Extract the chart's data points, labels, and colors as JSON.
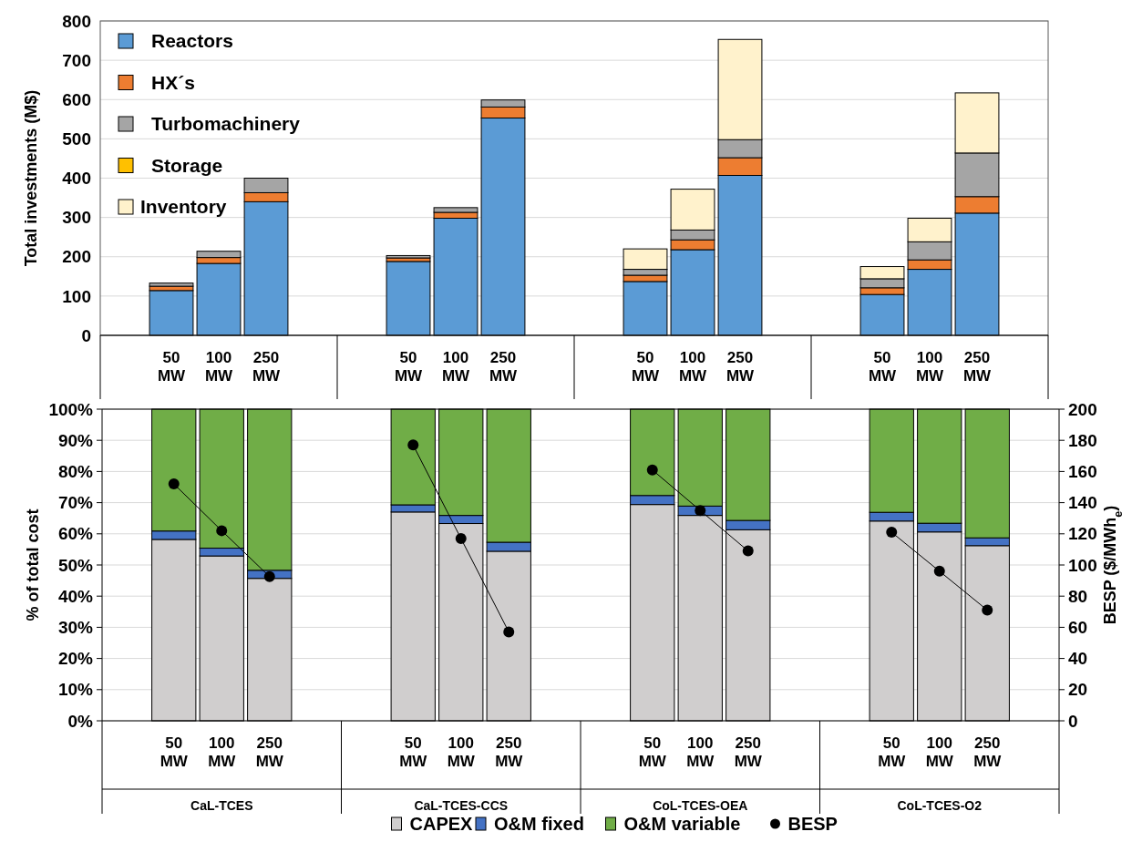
{
  "chart_data": [
    {
      "type": "bar",
      "stacked": true,
      "ylabel": "Total investments (M$)",
      "ylim": [
        0,
        800
      ],
      "yticks": [
        0,
        100,
        200,
        300,
        400,
        500,
        600,
        700,
        800
      ],
      "grid": "y",
      "legend": "top left",
      "categories": [
        null,
        "50 MW",
        "100 MW",
        "250 MW",
        null,
        null,
        "50 MW",
        "100 MW",
        "250 MW",
        null,
        null,
        "50 MW",
        "100 MW",
        "250 MW",
        null,
        null,
        "50 MW",
        "100 MW",
        "250 MW",
        null
      ],
      "series": [
        {
          "name": "Reactors",
          "color": "#5b9bd5",
          "values": [
            null,
            114,
            183,
            340,
            null,
            null,
            188,
            298,
            553,
            null,
            null,
            137,
            218,
            407,
            null,
            null,
            104,
            168,
            311,
            null
          ]
        },
        {
          "name": "HX´s",
          "color": "#ed7d31",
          "values": [
            null,
            11,
            15,
            23,
            null,
            null,
            9,
            15,
            28,
            null,
            null,
            16,
            25,
            45,
            null,
            null,
            17,
            24,
            42,
            null
          ]
        },
        {
          "name": "Turbomachinery",
          "color": "#a5a5a5",
          "values": [
            null,
            8,
            16,
            37,
            null,
            null,
            6,
            12,
            18,
            null,
            null,
            15,
            25,
            46,
            null,
            null,
            23,
            46,
            111,
            null
          ]
        },
        {
          "name": "Storage",
          "color": "#ffc000",
          "values": [
            null,
            0,
            0,
            0,
            null,
            null,
            0,
            0,
            0,
            null,
            null,
            0,
            0,
            0,
            null,
            null,
            0,
            0,
            0,
            null
          ]
        },
        {
          "name": "Inventory",
          "color": "#fff2cc",
          "values": [
            null,
            0,
            0,
            0,
            null,
            null,
            0,
            0,
            0,
            null,
            null,
            52,
            104,
            255,
            null,
            null,
            31,
            60,
            153,
            null
          ]
        }
      ]
    },
    {
      "type": "bar",
      "stacked": true,
      "ylabel": "% of total cost",
      "y2label": "BESP ($/MWh$_{e}$)",
      "ylim": [
        0,
        100
      ],
      "y2lim": [
        0,
        200
      ],
      "grid": "y",
      "legend": "bottom",
      "yticks": [
        {
          "value": 0,
          "label": "0%"
        },
        {
          "value": 10,
          "label": "10%"
        },
        {
          "value": 20,
          "label": "20%"
        },
        {
          "value": 30,
          "label": "30%"
        },
        {
          "value": 40,
          "label": "40%"
        },
        {
          "value": 50,
          "label": "50%"
        },
        {
          "value": 60,
          "label": "60%"
        },
        {
          "value": 70,
          "label": "70%"
        },
        {
          "value": 80,
          "label": "80%"
        },
        {
          "value": 90,
          "label": "90%"
        },
        {
          "value": 100,
          "label": "100%"
        }
      ],
      "y2ticks": [
        0,
        20,
        40,
        60,
        80,
        100,
        120,
        140,
        160,
        180,
        200
      ],
      "categories": [
        null,
        "50 MW",
        "100 MW",
        "250 MW",
        null,
        null,
        "50 MW",
        "100 MW",
        "250 MW",
        null,
        null,
        "50 MW",
        "100 MW",
        "250 MW",
        null,
        null,
        "50 MW",
        "100 MW",
        "250 MW",
        null
      ],
      "annotations": [
        "CaL-TCES",
        "CaL-TCES-CCS",
        "CoL-TCES-OEA",
        "CoL-TCES-O2"
      ],
      "series": [
        {
          "name": "CAPEX",
          "color": "#d0cece",
          "values": [
            null,
            58.2,
            52.9,
            45.7,
            null,
            null,
            67.0,
            63.3,
            54.4,
            null,
            null,
            69.4,
            65.9,
            61.3,
            null,
            null,
            64.1,
            60.6,
            56.2,
            null
          ]
        },
        {
          "name": "O&M fixed",
          "color": "#4472c4",
          "values": [
            null,
            2.7,
            2.5,
            2.6,
            null,
            null,
            2.3,
            2.6,
            2.9,
            null,
            null,
            2.9,
            3.0,
            3.0,
            null,
            null,
            2.8,
            2.8,
            2.5,
            null
          ]
        },
        {
          "name": "O&M variable",
          "color": "#70ad47",
          "values": [
            null,
            39.1,
            44.6,
            51.7,
            null,
            null,
            30.7,
            34.1,
            42.7,
            null,
            null,
            27.7,
            31.1,
            35.7,
            null,
            null,
            33.1,
            36.6,
            41.3,
            null
          ]
        },
        {
          "name": "BESP",
          "type": "line",
          "axis": "y2",
          "marker": "circle",
          "color": "#000000",
          "values": [
            null,
            152,
            122,
            92.5,
            null,
            null,
            177,
            117,
            57,
            null,
            null,
            161,
            135,
            109,
            null,
            null,
            121,
            96,
            71,
            null
          ]
        }
      ]
    }
  ]
}
